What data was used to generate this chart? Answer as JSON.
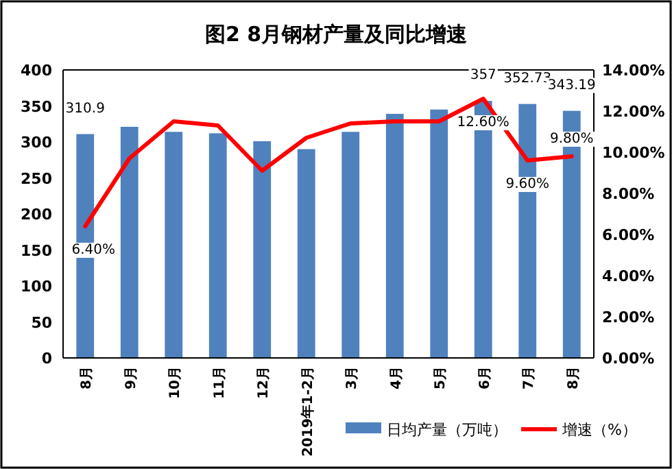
{
  "chart_data": {
    "type": "bar",
    "title": "图2 8月钢材产量及同比增速",
    "categories": [
      "8月",
      "9月",
      "10月",
      "11月",
      "12月",
      "2019年1-2月",
      "3月",
      "4月",
      "5月",
      "6月",
      "7月",
      "8月"
    ],
    "series": [
      {
        "name": "日均产量（万吨）",
        "color": "#4f81bd",
        "values": [
          310.9,
          321,
          314,
          312,
          301,
          290,
          314,
          339,
          345,
          357,
          352.73,
          343.19
        ],
        "value_labels": [
          "310.9",
          null,
          null,
          null,
          null,
          null,
          null,
          null,
          null,
          "357",
          "352.73",
          "343.19"
        ]
      },
      {
        "name": "增速（%）",
        "type": "line",
        "axis": "y2",
        "color": "#ff0000",
        "values": [
          6.4,
          9.7,
          11.5,
          11.3,
          9.1,
          10.7,
          11.4,
          11.5,
          11.5,
          12.6,
          9.6,
          9.8
        ],
        "value_labels": [
          "6.40%",
          null,
          null,
          null,
          null,
          null,
          null,
          null,
          null,
          "12.60%",
          "9.60%",
          "9.80%"
        ]
      }
    ],
    "ylim": [
      0,
      400
    ],
    "yticks": [
      0,
      50,
      100,
      150,
      200,
      250,
      300,
      350,
      400
    ],
    "y2lim": [
      0,
      14
    ],
    "y2ticks": [
      {
        "value": 0,
        "label": "0.00%"
      },
      {
        "value": 2,
        "label": "2.00%"
      },
      {
        "value": 4,
        "label": "4.00%"
      },
      {
        "value": 6,
        "label": "6.00%"
      },
      {
        "value": 8,
        "label": "8.00%"
      },
      {
        "value": 10,
        "label": "10.00%"
      },
      {
        "value": 12,
        "label": "12.00%"
      },
      {
        "value": 14,
        "label": "14.00%"
      }
    ],
    "grid": false,
    "legend": "bottom right",
    "marker": "none",
    "line_style": "solid"
  }
}
